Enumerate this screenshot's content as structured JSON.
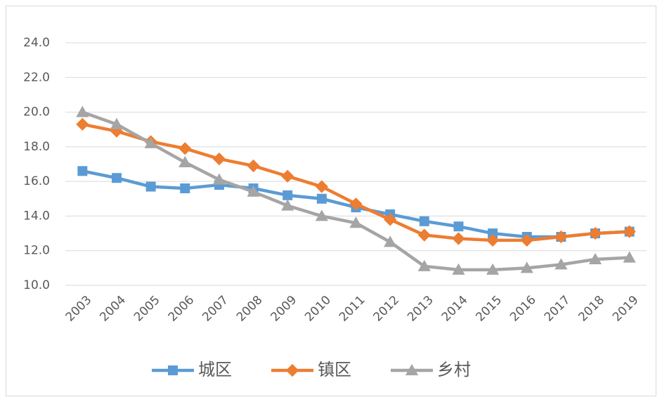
{
  "chart_data": {
    "type": "line",
    "categories": [
      "2003",
      "2004",
      "2005",
      "2006",
      "2007",
      "2008",
      "2009",
      "2010",
      "2011",
      "2012",
      "2013",
      "2014",
      "2015",
      "2016",
      "2017",
      "2018",
      "2019"
    ],
    "series": [
      {
        "name": "城区",
        "color": "#5b9bd5",
        "marker": "square",
        "values": [
          16.6,
          16.2,
          15.7,
          15.6,
          15.8,
          15.6,
          15.2,
          15.0,
          14.5,
          14.1,
          13.7,
          13.4,
          13.0,
          12.8,
          12.8,
          13.0,
          13.1
        ]
      },
      {
        "name": "镇区",
        "color": "#ed7d31",
        "marker": "diamond",
        "values": [
          19.3,
          18.9,
          18.3,
          17.9,
          17.3,
          16.9,
          16.3,
          15.7,
          14.7,
          13.8,
          12.9,
          12.7,
          12.6,
          12.6,
          12.8,
          13.0,
          13.1
        ]
      },
      {
        "name": "乡村",
        "color": "#a5a5a5",
        "marker": "triangle",
        "values": [
          20.0,
          19.3,
          18.2,
          17.1,
          16.1,
          15.4,
          14.6,
          14.0,
          13.6,
          12.5,
          11.1,
          10.9,
          10.9,
          11.0,
          11.2,
          11.5,
          11.6
        ]
      }
    ],
    "ylim": [
      10,
      24
    ],
    "yticks": [
      {
        "value": 10,
        "label": "10.0"
      },
      {
        "value": 12,
        "label": "12.0"
      },
      {
        "value": 14,
        "label": "14.0"
      },
      {
        "value": 16,
        "label": "16.0"
      },
      {
        "value": 18,
        "label": "18.0"
      },
      {
        "value": 20,
        "label": "20.0"
      },
      {
        "value": 22,
        "label": "22.0"
      },
      {
        "value": 24,
        "label": "24.0"
      }
    ],
    "grid": true,
    "legend": "bottom"
  }
}
